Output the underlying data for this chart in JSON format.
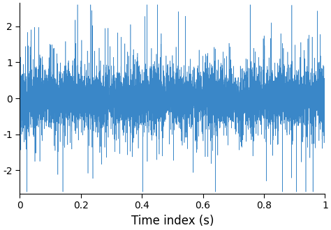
{
  "title": "",
  "xlabel": "Time index (s)",
  "ylabel": "",
  "xlim": [
    0,
    1
  ],
  "ylim": [
    -2.65,
    2.65
  ],
  "yticks": [
    -2,
    -1,
    0,
    1,
    2
  ],
  "xticks": [
    0,
    0.2,
    0.4,
    0.6,
    0.8,
    1.0
  ],
  "line_color": "#3a87c8",
  "line_width": 0.4,
  "n_samples": 10000,
  "seed": 7,
  "background_color": "#ffffff",
  "figsize": [
    4.74,
    3.3
  ],
  "dpi": 100,
  "xlabel_fontsize": 12,
  "tick_fontsize": 10,
  "spine_linewidth": 0.8
}
